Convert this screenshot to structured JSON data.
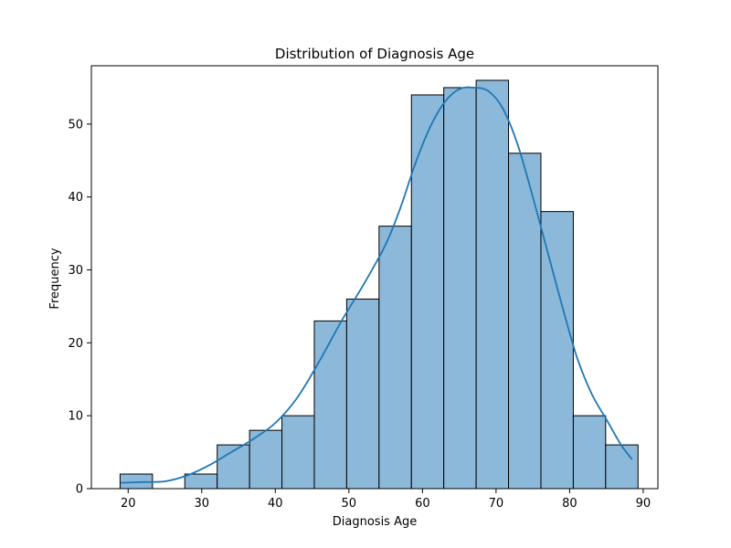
{
  "chart_data": {
    "type": "bar",
    "subtype": "histogram-with-kde",
    "title": "Distribution of Diagnosis Age",
    "xlabel": "Diagnosis Age",
    "ylabel": "Frequency",
    "xlim": [
      15,
      92
    ],
    "ylim": [
      0,
      58
    ],
    "xticks": [
      20,
      30,
      40,
      50,
      60,
      70,
      80,
      90
    ],
    "yticks": [
      0,
      10,
      20,
      30,
      40,
      50
    ],
    "bins": [
      {
        "x0": 18.9,
        "x1": 23.3,
        "count": 2
      },
      {
        "x0": 23.3,
        "x1": 27.7,
        "count": 0
      },
      {
        "x0": 27.7,
        "x1": 32.1,
        "count": 2
      },
      {
        "x0": 32.1,
        "x1": 36.5,
        "count": 6
      },
      {
        "x0": 36.5,
        "x1": 40.9,
        "count": 8
      },
      {
        "x0": 40.9,
        "x1": 45.3,
        "count": 10
      },
      {
        "x0": 45.3,
        "x1": 49.7,
        "count": 23
      },
      {
        "x0": 49.7,
        "x1": 54.1,
        "count": 26
      },
      {
        "x0": 54.1,
        "x1": 58.5,
        "count": 36
      },
      {
        "x0": 58.5,
        "x1": 62.9,
        "count": 54
      },
      {
        "x0": 62.9,
        "x1": 67.3,
        "count": 55
      },
      {
        "x0": 67.3,
        "x1": 71.7,
        "count": 56
      },
      {
        "x0": 71.7,
        "x1": 76.1,
        "count": 46
      },
      {
        "x0": 76.1,
        "x1": 80.5,
        "count": 38
      },
      {
        "x0": 80.5,
        "x1": 84.9,
        "count": 10
      },
      {
        "x0": 84.9,
        "x1": 89.3,
        "count": 6
      }
    ],
    "kde": [
      [
        19,
        0.8
      ],
      [
        22,
        0.9
      ],
      [
        25,
        1.0
      ],
      [
        28,
        1.8
      ],
      [
        31,
        3.2
      ],
      [
        34,
        5.0
      ],
      [
        37,
        6.8
      ],
      [
        40,
        9.0
      ],
      [
        43,
        12.5
      ],
      [
        46,
        17.5
      ],
      [
        49,
        23.0
      ],
      [
        52,
        28.0
      ],
      [
        55,
        33.5
      ],
      [
        57,
        38.5
      ],
      [
        59,
        44.5
      ],
      [
        61,
        49.5
      ],
      [
        63,
        53.0
      ],
      [
        65,
        54.8
      ],
      [
        67,
        55.0
      ],
      [
        69,
        54.5
      ],
      [
        71,
        52.0
      ],
      [
        73,
        47.0
      ],
      [
        75,
        40.0
      ],
      [
        77,
        32.5
      ],
      [
        79,
        25.0
      ],
      [
        81,
        18.0
      ],
      [
        83,
        13.0
      ],
      [
        85,
        9.5
      ],
      [
        87,
        6.0
      ],
      [
        88.5,
        4.0
      ]
    ],
    "colors": {
      "bar_fill": "#8cb8d9",
      "bar_edge": "#000000",
      "kde_line": "#1f77b4"
    },
    "grid": false
  }
}
